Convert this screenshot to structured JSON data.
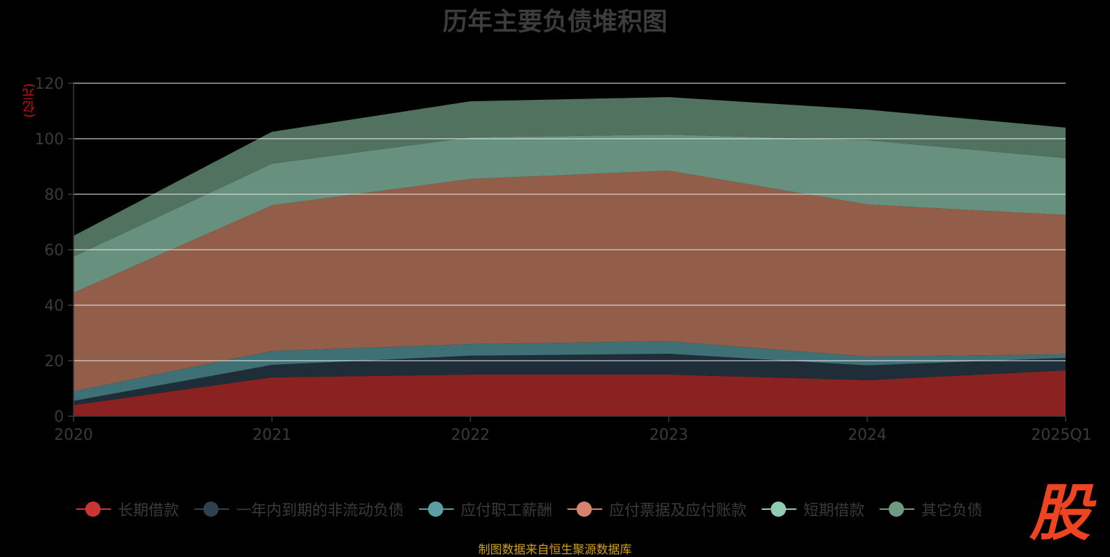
{
  "title": "历年主要负债堆积图",
  "unit_label": "(亿元)",
  "source_text": "制图数据来自恒生聚源数据库",
  "logo_text": "股",
  "chart_data": {
    "type": "area",
    "stacked": true,
    "categories": [
      "2020",
      "2021",
      "2022",
      "2023",
      "2024",
      "2025Q1"
    ],
    "ylim": [
      0,
      120
    ],
    "yticks": [
      0,
      20,
      40,
      60,
      80,
      100,
      120
    ],
    "grid": true,
    "legend_position": "bottom",
    "series": [
      {
        "name": "长期借款",
        "color": "#8b2222",
        "legend_color": "#cc3333",
        "values": [
          4.0,
          14.0,
          15.0,
          15.0,
          13.0,
          16.5
        ]
      },
      {
        "name": "一年内到期的非流动负债",
        "color": "#1f2d38",
        "legend_color": "#2f4050",
        "values": [
          1.5,
          4.5,
          6.8,
          7.5,
          5.3,
          4.5
        ]
      },
      {
        "name": "应付职工薪酬",
        "color": "#3e7075",
        "legend_color": "#5b9ea6",
        "values": [
          3.5,
          5.0,
          4.2,
          4.5,
          3.2,
          1.3
        ]
      },
      {
        "name": "应付票据及应付账款",
        "color": "#935e49",
        "legend_color": "#d9826c",
        "values": [
          35.5,
          52.5,
          59.5,
          61.5,
          54.8,
          50.2
        ]
      },
      {
        "name": "短期借款",
        "color": "#67917e",
        "legend_color": "#90ccb0",
        "values": [
          13.0,
          15.0,
          15.0,
          13.0,
          23.2,
          20.5
        ]
      },
      {
        "name": "其它负债",
        "color": "#527260",
        "legend_color": "#6e9a82",
        "values": [
          7.5,
          11.5,
          13.0,
          13.5,
          11.0,
          11.0
        ]
      }
    ]
  }
}
